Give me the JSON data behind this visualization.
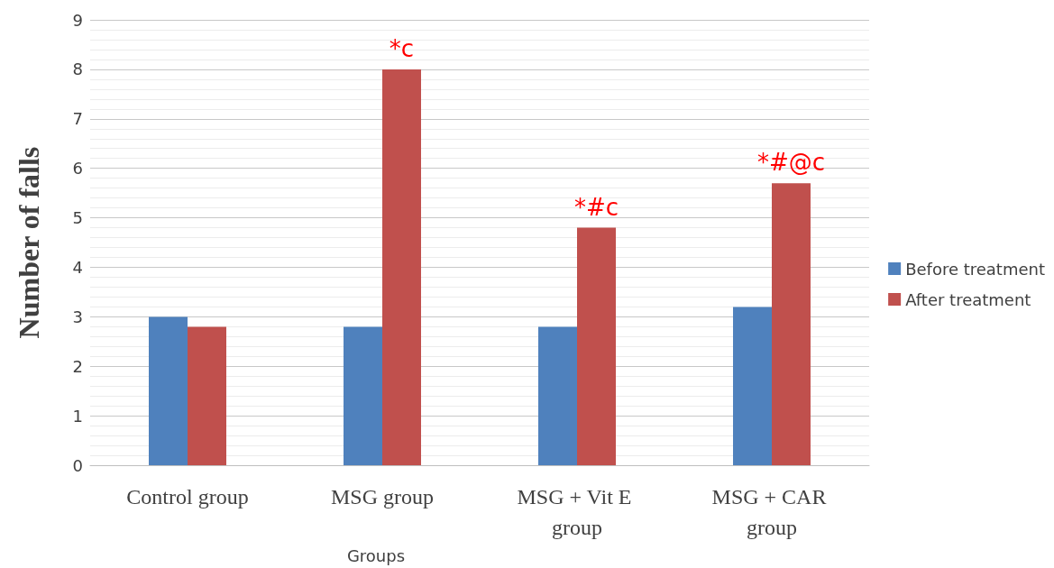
{
  "chart_data": {
    "type": "bar",
    "xlabel": "Groups",
    "ylabel": "Number of falls",
    "categories": [
      "Control group",
      "MSG group",
      "MSG + Vit E group",
      "MSG + CAR group"
    ],
    "series": [
      {
        "name": "Before treatment",
        "color": "#4f81bd",
        "values": [
          3,
          2.8,
          2.8,
          3.2
        ]
      },
      {
        "name": "After treatment",
        "color": "#c0504d",
        "values": [
          2.8,
          8,
          4.8,
          5.7
        ]
      }
    ],
    "ylim": [
      0,
      9
    ],
    "yticks": [
      0,
      1,
      2,
      3,
      4,
      5,
      6,
      7,
      8,
      9
    ],
    "grid": "y",
    "legend": "right",
    "annotations": [
      {
        "text": "*c",
        "x": "MSG group",
        "y": 8
      },
      {
        "text": "*#c",
        "x": "MSG + Vit E group",
        "y": 4.8
      },
      {
        "text": "*#@c",
        "x": "MSG + CAR group",
        "y": 5.7
      }
    ]
  }
}
